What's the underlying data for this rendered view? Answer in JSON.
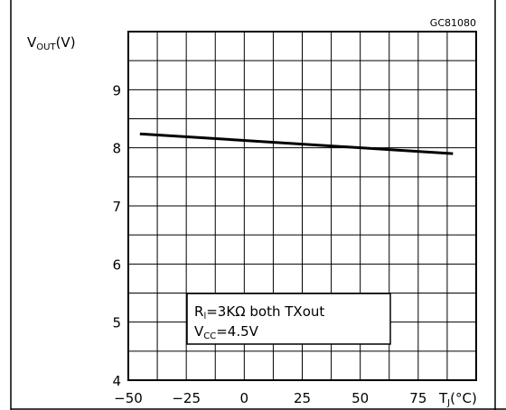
{
  "chart_data": {
    "type": "line",
    "figure_code": "GC81080",
    "ylabel": {
      "main": "V",
      "sub": "OUT",
      "unit": "(V)"
    },
    "xlabel": {
      "main": "T",
      "sub": "J",
      "unit": "(°C)"
    },
    "xlim": [
      -50,
      100
    ],
    "ylim": [
      4,
      10
    ],
    "x_ticks": [
      -50,
      -25,
      0,
      25,
      50,
      75
    ],
    "x_tick_labels": [
      "−50",
      "−25",
      "0",
      "25",
      "50",
      "75"
    ],
    "y_ticks": [
      4,
      5,
      6,
      7,
      8,
      9
    ],
    "x_grid_step": 12.5,
    "y_grid_step": 0.5,
    "grid": true,
    "series": [
      {
        "x": [
          -45,
          90
        ],
        "y": [
          8.24,
          7.9
        ]
      }
    ],
    "annotation": {
      "line1_prefix": "R",
      "line1_sub": "l",
      "line1_rest": "=3KΩ  both  TXout",
      "line2_prefix": "V",
      "line2_sub": "CC",
      "line2_rest": "=4.5V"
    }
  }
}
